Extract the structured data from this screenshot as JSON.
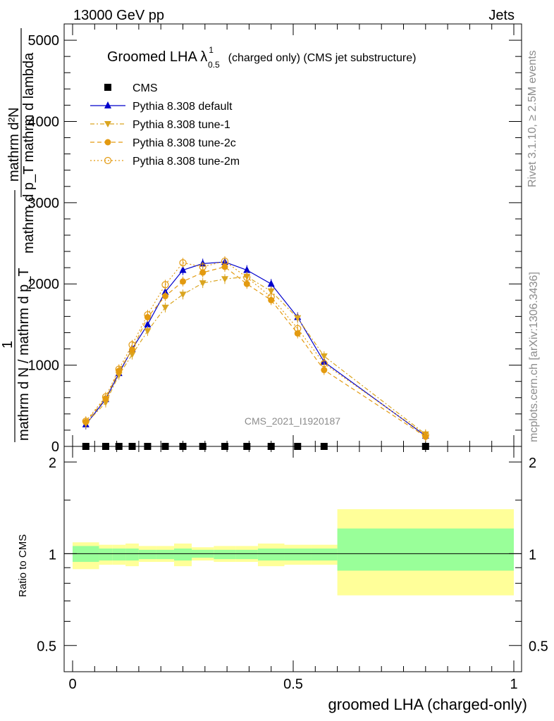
{
  "header": {
    "energy": "13000 GeV pp",
    "category": "Jets",
    "side_rivet": "Rivet 3.1.10, ≥ 2.5M events",
    "side_mcplots": "mcplots.cern.ch [arXiv:1306.3436]",
    "watermark": "CMS_2021_I1920187"
  },
  "chart_data": [
    {
      "type": "line",
      "title": "Groomed LHA λ",
      "title_sup": "1",
      "title_sub": "0.5",
      "title_tail": "(charged only) (CMS jet substructure)",
      "ylabel_top_num": "mathrm d²N",
      "ylabel_top_den": "mathrm d p_T mathrm d lambda",
      "ylabel_bot_num": "1",
      "ylabel_bot_den": "mathrm d N / mathrm d p_T",
      "xlim": [
        0,
        1
      ],
      "ylim": [
        0,
        5200
      ],
      "yticks": [
        0,
        1000,
        2000,
        3000,
        4000,
        5000
      ],
      "ytick_labels": [
        "0",
        "1000",
        "2000",
        "3000",
        "4000",
        "5000"
      ],
      "series": [
        {
          "name": "CMS",
          "color": "#000000",
          "marker": "square",
          "x": [
            0.03,
            0.075,
            0.105,
            0.135,
            0.17,
            0.21,
            0.25,
            0.295,
            0.345,
            0.395,
            0.45,
            0.51,
            0.57,
            0.8
          ],
          "values": [
            0,
            0,
            0,
            0,
            0,
            0,
            0,
            0,
            0,
            0,
            0,
            0,
            0,
            0
          ]
        },
        {
          "name": "Pythia 8.308 default",
          "color": "#0000cc",
          "marker": "triangle-up",
          "dash": "",
          "x": [
            0.03,
            0.075,
            0.105,
            0.135,
            0.17,
            0.21,
            0.25,
            0.295,
            0.345,
            0.395,
            0.45,
            0.51,
            0.57,
            0.8
          ],
          "values": [
            270,
            580,
            900,
            1200,
            1500,
            1900,
            2170,
            2250,
            2270,
            2170,
            2000,
            1590,
            1040,
            130
          ]
        },
        {
          "name": "Pythia 8.308 tune-1",
          "color": "#daa520",
          "marker": "triangle-down",
          "dash": "6,3,2,3",
          "x": [
            0.03,
            0.075,
            0.105,
            0.135,
            0.17,
            0.21,
            0.25,
            0.295,
            0.345,
            0.395,
            0.45,
            0.51,
            0.57,
            0.8
          ],
          "values": [
            280,
            540,
            880,
            1130,
            1420,
            1710,
            1870,
            2010,
            2060,
            2090,
            1910,
            1580,
            1110,
            150
          ]
        },
        {
          "name": "Pythia 8.308 tune-2c",
          "color": "#e39a10",
          "marker": "circle",
          "dash": "6,4",
          "x": [
            0.03,
            0.075,
            0.105,
            0.135,
            0.17,
            0.21,
            0.25,
            0.295,
            0.345,
            0.395,
            0.45,
            0.51,
            0.57,
            0.8
          ],
          "values": [
            300,
            590,
            930,
            1190,
            1590,
            1850,
            2030,
            2140,
            2210,
            2000,
            1800,
            1390,
            940,
            120
          ]
        },
        {
          "name": "Pythia 8.308 tune-2m",
          "color": "#e39a10",
          "marker": "circle-open",
          "dash": "2,3",
          "x": [
            0.03,
            0.075,
            0.105,
            0.135,
            0.17,
            0.21,
            0.25,
            0.295,
            0.345,
            0.395,
            0.45,
            0.51,
            0.57,
            0.8
          ],
          "values": [
            310,
            610,
            950,
            1250,
            1620,
            1990,
            2260,
            2210,
            2280,
            2080,
            1840,
            1450,
            1020,
            140
          ]
        }
      ]
    },
    {
      "type": "area",
      "ylabel": "Ratio to CMS",
      "xlabel": "groomed LHA (charged-only)",
      "xlim": [
        0,
        1
      ],
      "ylim": [
        0.41,
        2.25
      ],
      "xticks": [
        0,
        0.5,
        1
      ],
      "xtick_labels": [
        "0",
        "0.5",
        "1"
      ],
      "yticks": [
        0.5,
        1,
        2
      ],
      "ytick_labels": [
        "0.5",
        "1",
        "2"
      ],
      "bins": [
        {
          "lo": 0.0,
          "hi": 0.06,
          "green": [
            0.94,
            1.06
          ],
          "yellow": [
            0.89,
            1.09
          ]
        },
        {
          "lo": 0.06,
          "hi": 0.09,
          "green": [
            0.95,
            1.04
          ],
          "yellow": [
            0.92,
            1.07
          ]
        },
        {
          "lo": 0.09,
          "hi": 0.12,
          "green": [
            0.95,
            1.04
          ],
          "yellow": [
            0.92,
            1.07
          ]
        },
        {
          "lo": 0.12,
          "hi": 0.15,
          "green": [
            0.95,
            1.04
          ],
          "yellow": [
            0.91,
            1.08
          ]
        },
        {
          "lo": 0.15,
          "hi": 0.19,
          "green": [
            0.96,
            1.03
          ],
          "yellow": [
            0.94,
            1.06
          ]
        },
        {
          "lo": 0.19,
          "hi": 0.23,
          "green": [
            0.96,
            1.03
          ],
          "yellow": [
            0.94,
            1.06
          ]
        },
        {
          "lo": 0.23,
          "hi": 0.27,
          "green": [
            0.95,
            1.04
          ],
          "yellow": [
            0.91,
            1.08
          ]
        },
        {
          "lo": 0.27,
          "hi": 0.32,
          "green": [
            0.97,
            1.03
          ],
          "yellow": [
            0.95,
            1.05
          ]
        },
        {
          "lo": 0.32,
          "hi": 0.37,
          "green": [
            0.96,
            1.03
          ],
          "yellow": [
            0.94,
            1.06
          ]
        },
        {
          "lo": 0.37,
          "hi": 0.42,
          "green": [
            0.96,
            1.03
          ],
          "yellow": [
            0.94,
            1.06
          ]
        },
        {
          "lo": 0.42,
          "hi": 0.48,
          "green": [
            0.95,
            1.04
          ],
          "yellow": [
            0.91,
            1.08
          ]
        },
        {
          "lo": 0.48,
          "hi": 0.54,
          "green": [
            0.95,
            1.04
          ],
          "yellow": [
            0.92,
            1.07
          ]
        },
        {
          "lo": 0.54,
          "hi": 0.6,
          "green": [
            0.95,
            1.04
          ],
          "yellow": [
            0.92,
            1.07
          ]
        },
        {
          "lo": 0.6,
          "hi": 1.0,
          "green": [
            0.88,
            1.21
          ],
          "yellow": [
            0.73,
            1.4
          ]
        }
      ]
    }
  ]
}
